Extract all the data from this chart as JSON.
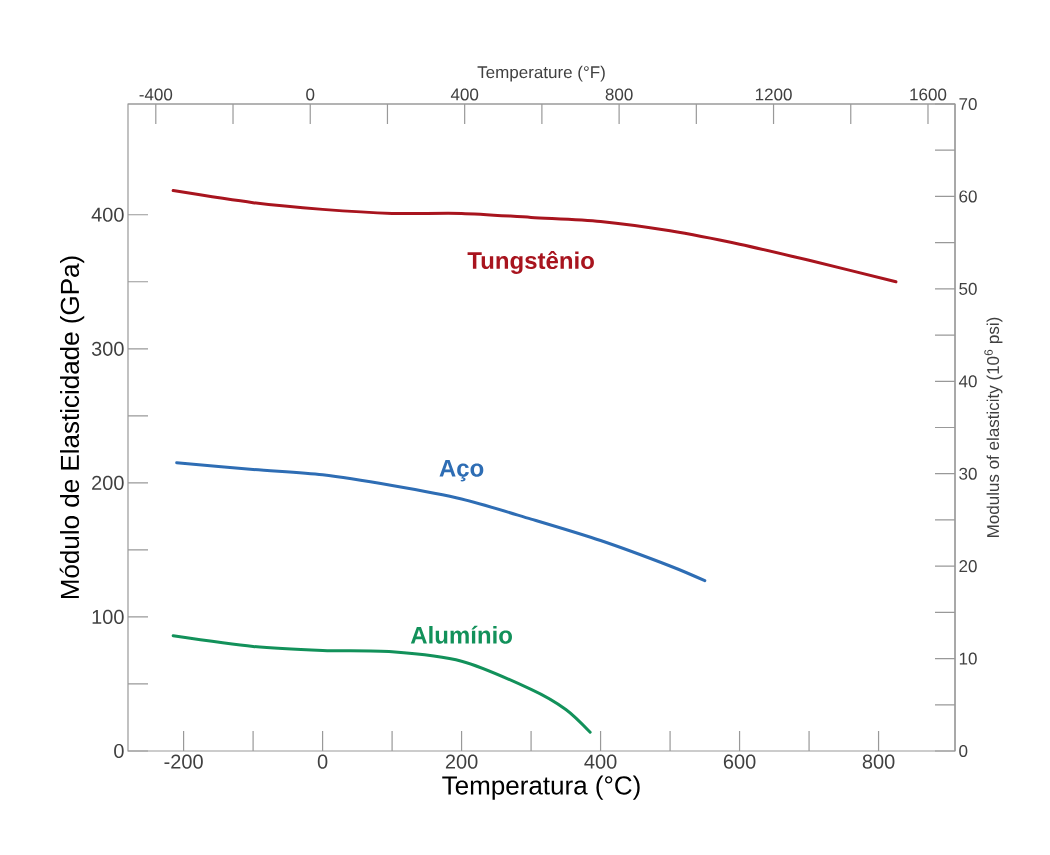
{
  "chart_data": {
    "type": "line",
    "xlabel": "Temperatura (°C)",
    "ylabel": "Módulo de Elasticidade (GPa)",
    "x2label": "Temperature (°F)",
    "y2label": "Modulus of elasticity (10$^{6}$ psi)",
    "xlim": [
      -280,
      910
    ],
    "ylim": [
      0,
      482.6
    ],
    "x2lim": [
      -472,
      1670
    ],
    "y2lim": [
      0,
      70
    ],
    "xticks": [
      -200,
      0,
      200,
      400,
      600,
      800
    ],
    "yticks": [
      0,
      100,
      200,
      300,
      400
    ],
    "x2ticks": [
      -400,
      0,
      400,
      800,
      1200,
      1600
    ],
    "y2ticks": [
      0,
      10,
      20,
      30,
      40,
      50,
      60,
      70
    ],
    "series": [
      {
        "name": "Tungstênio",
        "color": "#a8141e",
        "x": [
          -215,
          -100,
          0,
          100,
          200,
          300,
          400,
          500,
          600,
          700,
          825
        ],
        "values": [
          418,
          409,
          404,
          401,
          401,
          398,
          395,
          388,
          378,
          366,
          350
        ]
      },
      {
        "name": "Aço",
        "color": "#2e6db4",
        "x": [
          -210,
          -100,
          0,
          100,
          200,
          300,
          400,
          500,
          550
        ],
        "values": [
          215,
          210,
          206,
          198,
          188,
          173,
          157,
          138,
          127
        ]
      },
      {
        "name": "Alumínio",
        "color": "#12915a",
        "x": [
          -215,
          -100,
          0,
          100,
          200,
          300,
          350,
          385
        ],
        "values": [
          86,
          78,
          75,
          74,
          67,
          46,
          31,
          14
        ]
      }
    ]
  }
}
